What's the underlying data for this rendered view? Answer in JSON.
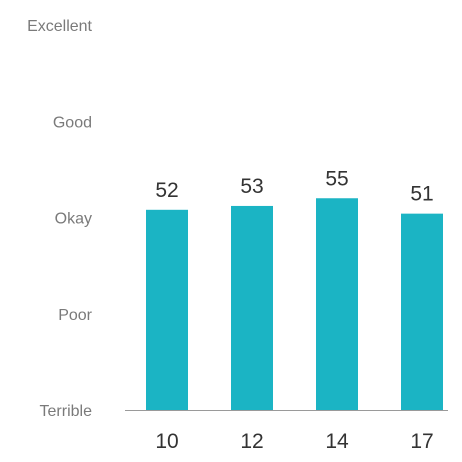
{
  "chart_data": {
    "type": "bar",
    "categories": [
      "10",
      "12",
      "14",
      "17"
    ],
    "values": [
      52,
      53,
      55,
      51
    ],
    "data_labels": [
      "52",
      "53",
      "55",
      "51"
    ],
    "ylim": [
      0,
      100
    ],
    "y_ticks": [
      {
        "value": 0,
        "label": "Terrible"
      },
      {
        "value": 25,
        "label": "Poor"
      },
      {
        "value": 50,
        "label": "Okay"
      },
      {
        "value": 75,
        "label": "Good"
      },
      {
        "value": 100,
        "label": "Excellent"
      }
    ],
    "grid": false,
    "colors": {
      "bar": "#1bb4c4",
      "axis": "#9a9a9a"
    }
  }
}
